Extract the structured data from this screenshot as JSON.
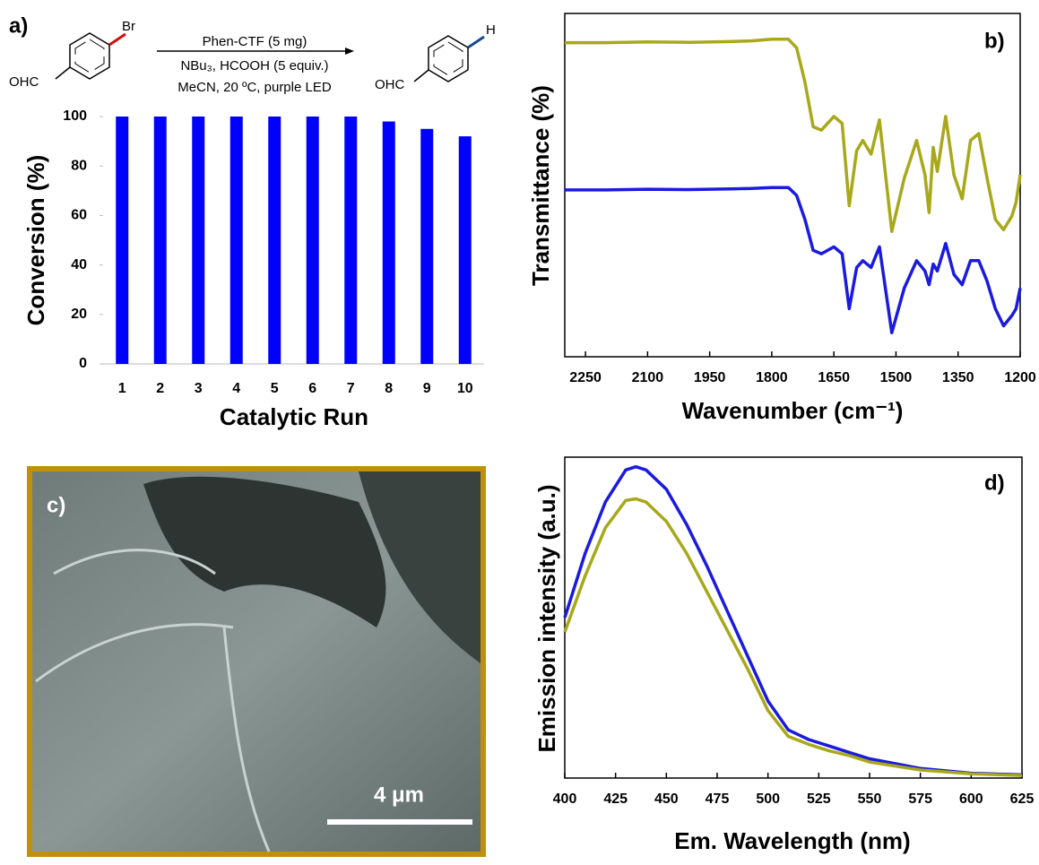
{
  "scheme": {
    "label": "a)",
    "reactant_substituent": "Br",
    "reactant_group": "OHC",
    "conditions": [
      "Phen-CTF (5 mg)",
      "NBu₃, HCOOH (5 equiv.)",
      "MeCN, 20 ºC, purple LED"
    ],
    "product_group": "OHC",
    "product_substituent": "H"
  },
  "image": {
    "label": "c)",
    "scale_bar": "4 μm"
  },
  "chart_data": [
    {
      "type": "bar",
      "xlabel": "Catalytic Run",
      "ylabel": "Conversion (%)",
      "categories": [
        "1",
        "2",
        "3",
        "4",
        "5",
        "6",
        "7",
        "8",
        "9",
        "10"
      ],
      "values": [
        100,
        100,
        100,
        100,
        100,
        100,
        100,
        98,
        95,
        92
      ],
      "color": "#0000ff",
      "ylim": [
        0,
        100
      ],
      "yticks": [
        0,
        20,
        40,
        60,
        80,
        100
      ]
    },
    {
      "type": "line",
      "panel_label": "b)",
      "xlabel": "Wavenumber (cm⁻¹)",
      "ylabel": "Transmittance (%)",
      "xlim": [
        2300,
        1200
      ],
      "xticks": [
        2250,
        2100,
        1950,
        1800,
        1650,
        1500,
        1350,
        1200
      ],
      "ylim": [
        0,
        100
      ],
      "x": [
        2300,
        2200,
        2100,
        2000,
        1900,
        1850,
        1800,
        1760,
        1740,
        1720,
        1700,
        1680,
        1650,
        1630,
        1613,
        1595,
        1580,
        1560,
        1540,
        1510,
        1480,
        1450,
        1430,
        1420,
        1410,
        1400,
        1380,
        1360,
        1340,
        1320,
        1300,
        1280,
        1260,
        1240,
        1220,
        1210,
        1200
      ],
      "series": [
        {
          "color": "#a8a81a",
          "values": [
            91.5,
            91.5,
            91.7,
            91.6,
            91.8,
            92,
            92.5,
            92.5,
            90,
            80,
            67,
            66,
            70,
            68,
            44,
            60,
            63,
            59,
            69,
            36.5,
            52,
            63,
            53,
            42,
            61,
            54,
            70,
            53,
            46,
            63,
            65,
            52,
            40,
            37,
            41,
            45,
            53
          ]
        },
        {
          "color": "#1a1ae0",
          "values": [
            48.6,
            48.6,
            48.8,
            48.7,
            48.9,
            49,
            49.3,
            49.3,
            47,
            40,
            31,
            30,
            32,
            30,
            14,
            26,
            28,
            26,
            32,
            7,
            20,
            28,
            25,
            21,
            27,
            25,
            33,
            24,
            21,
            28,
            28,
            22,
            14,
            9,
            12,
            14,
            20
          ]
        }
      ]
    },
    {
      "type": "line",
      "panel_label": "d)",
      "xlabel": "Em. Wavelength (nm)",
      "ylabel": "Emission intensity (a.u.)",
      "xlim": [
        400,
        625
      ],
      "xticks": [
        400,
        425,
        450,
        475,
        500,
        525,
        550,
        575,
        600,
        625
      ],
      "ylim": [
        0,
        100
      ],
      "x": [
        400,
        410,
        420,
        430,
        435,
        440,
        450,
        460,
        470,
        480,
        490,
        500,
        510,
        520,
        530,
        540,
        550,
        575,
        600,
        625
      ],
      "series": [
        {
          "color": "#1a1ae0",
          "values": [
            50,
            70,
            86,
            96,
            97,
            96,
            90,
            79,
            66,
            52,
            38,
            24,
            15,
            12,
            10,
            8,
            6,
            3,
            1.5,
            1
          ]
        },
        {
          "color": "#a8a81a",
          "values": [
            45.5,
            63,
            78,
            86.5,
            87,
            86,
            80,
            70,
            58,
            46,
            34,
            21,
            13,
            10.5,
            8.5,
            7,
            5,
            2.5,
            1.3,
            0.8
          ]
        }
      ]
    }
  ]
}
